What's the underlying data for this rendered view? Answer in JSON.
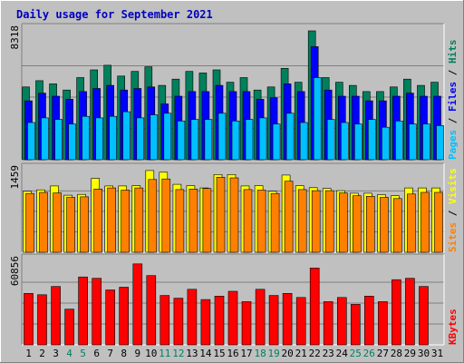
{
  "chart_data": {
    "type": "bar",
    "title": "Daily usage for September 2021",
    "categories": [
      "1",
      "2",
      "3",
      "4",
      "5",
      "6",
      "7",
      "8",
      "9",
      "10",
      "11",
      "12",
      "13",
      "14",
      "15",
      "16",
      "17",
      "18",
      "19",
      "20",
      "21",
      "22",
      "23",
      "24",
      "25",
      "26",
      "27",
      "28",
      "29",
      "30",
      "31"
    ],
    "weekend_days": [
      "4",
      "5",
      "11",
      "12",
      "18",
      "19",
      "25",
      "26"
    ],
    "grid": true,
    "panels": [
      {
        "id": "hits-files-pages",
        "ymax": 8318,
        "ymax_label": "8318",
        "ylabel_parts": [
          {
            "text": "Pages",
            "color": "#00C0FF"
          },
          {
            "text": " / ",
            "color": "#000000"
          },
          {
            "text": "Files",
            "color": "#0000FF"
          },
          {
            "text": " / ",
            "color": "#000000"
          },
          {
            "text": "Hits",
            "color": "#00805C"
          }
        ],
        "series": [
          {
            "name": "Hits",
            "color": "#00805C",
            "values": [
              4700,
              5100,
              4900,
              4500,
              5300,
              5800,
              6100,
              5400,
              5700,
              6000,
              4800,
              5200,
              5700,
              5600,
              5800,
              5000,
              5300,
              4500,
              4700,
              5900,
              5000,
              8318,
              5300,
              5000,
              4800,
              4400,
              4400,
              4700,
              5200,
              4800,
              5000
            ]
          },
          {
            "name": "Files",
            "color": "#0000FF",
            "values": [
              3800,
              4300,
              4100,
              3900,
              4400,
              4600,
              4800,
              4500,
              4600,
              4700,
              3600,
              4100,
              4400,
              4400,
              4800,
              4400,
              4400,
              3900,
              4000,
              4900,
              4400,
              7300,
              4500,
              4100,
              4100,
              3800,
              3800,
              4100,
              4300,
              4100,
              4100
            ]
          },
          {
            "name": "Pages",
            "color": "#00C0FF",
            "values": [
              2400,
              2700,
              2600,
              2300,
              2800,
              2700,
              2800,
              3100,
              2700,
              2900,
              3000,
              2500,
              2600,
              2600,
              3000,
              2500,
              2600,
              2700,
              2300,
              3000,
              2400,
              5300,
              2600,
              2400,
              2300,
              2600,
              2100,
              2500,
              2300,
              2300,
              2200
            ]
          }
        ]
      },
      {
        "id": "visits-sites",
        "ymax": 1459,
        "ymax_label": "1459",
        "ylabel_parts": [
          {
            "text": "Sites",
            "color": "#FF8000"
          },
          {
            "text": " / ",
            "color": "#000000"
          },
          {
            "text": "Visits",
            "color": "#FFFF00"
          }
        ],
        "series": [
          {
            "name": "Visits",
            "color": "#FFFF00",
            "values": [
              1090,
              1115,
              1185,
              1020,
              1035,
              1320,
              1185,
              1185,
              1190,
              1460,
              1430,
              1215,
              1190,
              1150,
              1390,
              1390,
              1185,
              1190,
              1090,
              1380,
              1190,
              1155,
              1140,
              1100,
              1055,
              1055,
              1030,
              1010,
              1150,
              1150,
              1150
            ]
          },
          {
            "name": "Sites",
            "color": "#FF8000",
            "values": [
              1050,
              1070,
              1060,
              980,
              990,
              1130,
              1150,
              1110,
              1150,
              1300,
              1310,
              1120,
              1130,
              1140,
              1340,
              1330,
              1120,
              1110,
              1050,
              1270,
              1120,
              1100,
              1100,
              1060,
              1010,
              1000,
              980,
              960,
              1040,
              1070,
              1070
            ]
          }
        ]
      },
      {
        "id": "kbytes",
        "ymax": 60856,
        "ymax_label": "60856",
        "ylabel_parts": [
          {
            "text": "KBytes",
            "color": "#FF0000"
          }
        ],
        "series": [
          {
            "name": "KBytes",
            "color": "#FF0000",
            "values": [
              37500,
              36500,
              42500,
              26000,
              49500,
              48500,
              40000,
              42000,
              59000,
              50500,
              36000,
              34000,
              40500,
              33000,
              35500,
              39000,
              31500,
              40500,
              36000,
              37500,
              34500,
              56000,
              31500,
              34500,
              29500,
              35500,
              31500,
              47500,
              48500,
              42500,
              0
            ]
          }
        ]
      }
    ]
  }
}
